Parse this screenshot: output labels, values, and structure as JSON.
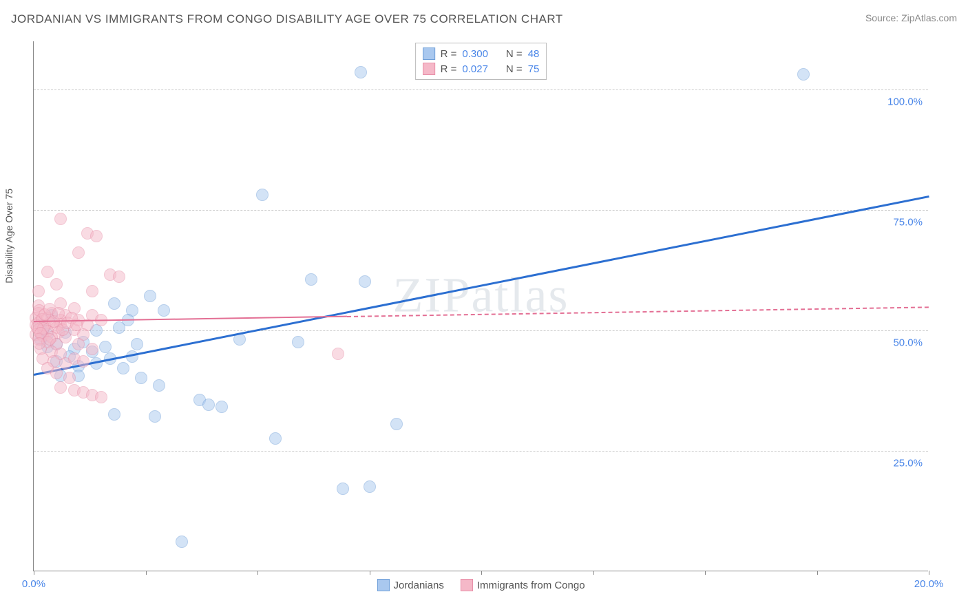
{
  "header": {
    "title": "JORDANIAN VS IMMIGRANTS FROM CONGO DISABILITY AGE OVER 75 CORRELATION CHART",
    "source": "Source: ZipAtlas.com"
  },
  "watermark": "ZIPatlas",
  "chart": {
    "type": "scatter",
    "ylabel": "Disability Age Over 75",
    "xlim": [
      0,
      20
    ],
    "ylim": [
      0,
      110
    ],
    "background_color": "#ffffff",
    "grid_color": "#cccccc",
    "axis_color": "#888888",
    "tick_label_color": "#4a86e8",
    "yticks": [
      {
        "value": 25,
        "label": "25.0%"
      },
      {
        "value": 50,
        "label": "50.0%"
      },
      {
        "value": 75,
        "label": "75.0%"
      },
      {
        "value": 100,
        "label": "100.0%"
      }
    ],
    "xticks": [
      {
        "value": 0,
        "label": "0.0%"
      },
      {
        "value": 2.5,
        "label": ""
      },
      {
        "value": 5.0,
        "label": ""
      },
      {
        "value": 7.5,
        "label": ""
      },
      {
        "value": 10.0,
        "label": ""
      },
      {
        "value": 12.5,
        "label": ""
      },
      {
        "value": 15.0,
        "label": ""
      },
      {
        "value": 17.5,
        "label": ""
      },
      {
        "value": 20,
        "label": "20.0%"
      }
    ],
    "marker_radius": 9,
    "marker_opacity": 0.5,
    "series": [
      {
        "name": "Jordanians",
        "fill_color": "#a9c8ef",
        "stroke_color": "#6f9fd8",
        "trend_color": "#2c6fd1",
        "trend_width": 3,
        "trend_dash_after_x": 20.0,
        "trend": {
          "x1": 0.0,
          "y1": 41.0,
          "x2": 20.0,
          "y2": 78.0
        },
        "R_label": "R =",
        "R_value": "0.300",
        "N_label": "N =",
        "N_value": "48",
        "points": [
          {
            "x": 7.3,
            "y": 103.5
          },
          {
            "x": 17.2,
            "y": 103.0
          },
          {
            "x": 5.1,
            "y": 78.0
          },
          {
            "x": 6.2,
            "y": 60.5
          },
          {
            "x": 7.4,
            "y": 60.0
          },
          {
            "x": 2.6,
            "y": 57.0
          },
          {
            "x": 1.8,
            "y": 55.5
          },
          {
            "x": 2.2,
            "y": 54.0
          },
          {
            "x": 0.4,
            "y": 53.0
          },
          {
            "x": 0.2,
            "y": 50.0
          },
          {
            "x": 0.7,
            "y": 49.5
          },
          {
            "x": 1.4,
            "y": 49.8
          },
          {
            "x": 2.9,
            "y": 54.0
          },
          {
            "x": 1.9,
            "y": 50.5
          },
          {
            "x": 5.9,
            "y": 47.5
          },
          {
            "x": 4.6,
            "y": 48.0
          },
          {
            "x": 0.3,
            "y": 46.5
          },
          {
            "x": 0.9,
            "y": 46.0
          },
          {
            "x": 1.3,
            "y": 45.5
          },
          {
            "x": 1.7,
            "y": 44.0
          },
          {
            "x": 2.2,
            "y": 44.5
          },
          {
            "x": 0.5,
            "y": 43.5
          },
          {
            "x": 1.0,
            "y": 42.5
          },
          {
            "x": 2.4,
            "y": 40.0
          },
          {
            "x": 2.8,
            "y": 38.5
          },
          {
            "x": 3.7,
            "y": 35.5
          },
          {
            "x": 3.9,
            "y": 34.5
          },
          {
            "x": 4.2,
            "y": 34.0
          },
          {
            "x": 1.8,
            "y": 32.5
          },
          {
            "x": 2.7,
            "y": 32.0
          },
          {
            "x": 8.1,
            "y": 30.5
          },
          {
            "x": 5.4,
            "y": 27.5
          },
          {
            "x": 6.9,
            "y": 17.0
          },
          {
            "x": 7.5,
            "y": 17.5
          },
          {
            "x": 3.3,
            "y": 6.0
          },
          {
            "x": 0.15,
            "y": 48.0
          },
          {
            "x": 0.15,
            "y": 51.0
          },
          {
            "x": 0.3,
            "y": 49.0
          },
          {
            "x": 0.5,
            "y": 47.0
          },
          {
            "x": 0.8,
            "y": 44.5
          },
          {
            "x": 1.1,
            "y": 47.5
          },
          {
            "x": 1.0,
            "y": 40.5
          },
          {
            "x": 1.4,
            "y": 43.0
          },
          {
            "x": 1.6,
            "y": 46.5
          },
          {
            "x": 2.0,
            "y": 42.0
          },
          {
            "x": 2.3,
            "y": 47.0
          },
          {
            "x": 2.1,
            "y": 52.0
          },
          {
            "x": 0.6,
            "y": 40.5
          }
        ]
      },
      {
        "name": "Immigrants from Congo",
        "fill_color": "#f5b8c8",
        "stroke_color": "#e88fa8",
        "trend_color": "#e36f94",
        "trend_width": 2,
        "trend_dash_after_x": 7.0,
        "trend": {
          "x1": 0.0,
          "y1": 52.0,
          "x2": 20.0,
          "y2": 55.0
        },
        "R_label": "R =",
        "R_value": "0.027",
        "N_label": "N =",
        "N_value": "75",
        "points": [
          {
            "x": 0.6,
            "y": 73.0
          },
          {
            "x": 1.2,
            "y": 70.0
          },
          {
            "x": 1.4,
            "y": 69.5
          },
          {
            "x": 1.0,
            "y": 66.0
          },
          {
            "x": 1.7,
            "y": 61.5
          },
          {
            "x": 1.9,
            "y": 61.0
          },
          {
            "x": 1.3,
            "y": 58.0
          },
          {
            "x": 0.3,
            "y": 62.0
          },
          {
            "x": 0.5,
            "y": 59.5
          },
          {
            "x": 0.1,
            "y": 58.0
          },
          {
            "x": 0.1,
            "y": 55.0
          },
          {
            "x": 0.6,
            "y": 55.5
          },
          {
            "x": 0.9,
            "y": 54.5
          },
          {
            "x": 0.1,
            "y": 53.5
          },
          {
            "x": 0.4,
            "y": 53.5
          },
          {
            "x": 0.7,
            "y": 53.0
          },
          {
            "x": 0.05,
            "y": 52.5
          },
          {
            "x": 0.3,
            "y": 52.5
          },
          {
            "x": 0.6,
            "y": 52.0
          },
          {
            "x": 0.1,
            "y": 51.5
          },
          {
            "x": 0.35,
            "y": 51.5
          },
          {
            "x": 0.6,
            "y": 51.2
          },
          {
            "x": 0.05,
            "y": 51.0
          },
          {
            "x": 0.25,
            "y": 50.8
          },
          {
            "x": 0.5,
            "y": 50.5
          },
          {
            "x": 0.1,
            "y": 50.0
          },
          {
            "x": 0.3,
            "y": 49.7
          },
          {
            "x": 0.55,
            "y": 49.5
          },
          {
            "x": 0.05,
            "y": 49.0
          },
          {
            "x": 0.2,
            "y": 48.7
          },
          {
            "x": 0.4,
            "y": 48.4
          },
          {
            "x": 0.1,
            "y": 48.0
          },
          {
            "x": 0.3,
            "y": 47.5
          },
          {
            "x": 0.5,
            "y": 47.0
          },
          {
            "x": 0.7,
            "y": 48.5
          },
          {
            "x": 0.9,
            "y": 50.0
          },
          {
            "x": 1.0,
            "y": 52.0
          },
          {
            "x": 1.2,
            "y": 51.0
          },
          {
            "x": 1.1,
            "y": 49.0
          },
          {
            "x": 1.3,
            "y": 53.0
          },
          {
            "x": 1.5,
            "y": 52.0
          },
          {
            "x": 1.0,
            "y": 47.0
          },
          {
            "x": 1.3,
            "y": 46.0
          },
          {
            "x": 0.15,
            "y": 46.0
          },
          {
            "x": 0.4,
            "y": 45.5
          },
          {
            "x": 0.6,
            "y": 45.0
          },
          {
            "x": 0.2,
            "y": 44.0
          },
          {
            "x": 0.45,
            "y": 43.5
          },
          {
            "x": 0.7,
            "y": 43.0
          },
          {
            "x": 0.9,
            "y": 44.0
          },
          {
            "x": 1.1,
            "y": 43.5
          },
          {
            "x": 0.3,
            "y": 42.0
          },
          {
            "x": 0.5,
            "y": 41.0
          },
          {
            "x": 0.8,
            "y": 40.0
          },
          {
            "x": 0.9,
            "y": 37.5
          },
          {
            "x": 1.1,
            "y": 37.0
          },
          {
            "x": 1.3,
            "y": 36.5
          },
          {
            "x": 1.5,
            "y": 36.0
          },
          {
            "x": 0.6,
            "y": 38.0
          },
          {
            "x": 6.8,
            "y": 45.0
          },
          {
            "x": 0.12,
            "y": 54.0
          },
          {
            "x": 0.18,
            "y": 52.2
          },
          {
            "x": 0.22,
            "y": 50.3
          },
          {
            "x": 0.08,
            "y": 50.5
          },
          {
            "x": 0.15,
            "y": 49.3
          },
          {
            "x": 0.12,
            "y": 47.2
          },
          {
            "x": 0.25,
            "y": 53.2
          },
          {
            "x": 0.35,
            "y": 54.3
          },
          {
            "x": 0.45,
            "y": 51.7
          },
          {
            "x": 0.55,
            "y": 53.5
          },
          {
            "x": 0.65,
            "y": 50.0
          },
          {
            "x": 0.75,
            "y": 51.5
          },
          {
            "x": 0.85,
            "y": 52.5
          },
          {
            "x": 0.95,
            "y": 51.0
          },
          {
            "x": 0.35,
            "y": 48.0
          }
        ]
      }
    ]
  },
  "legend": {
    "series1_label": "Jordanians",
    "series2_label": "Immigrants from Congo"
  }
}
